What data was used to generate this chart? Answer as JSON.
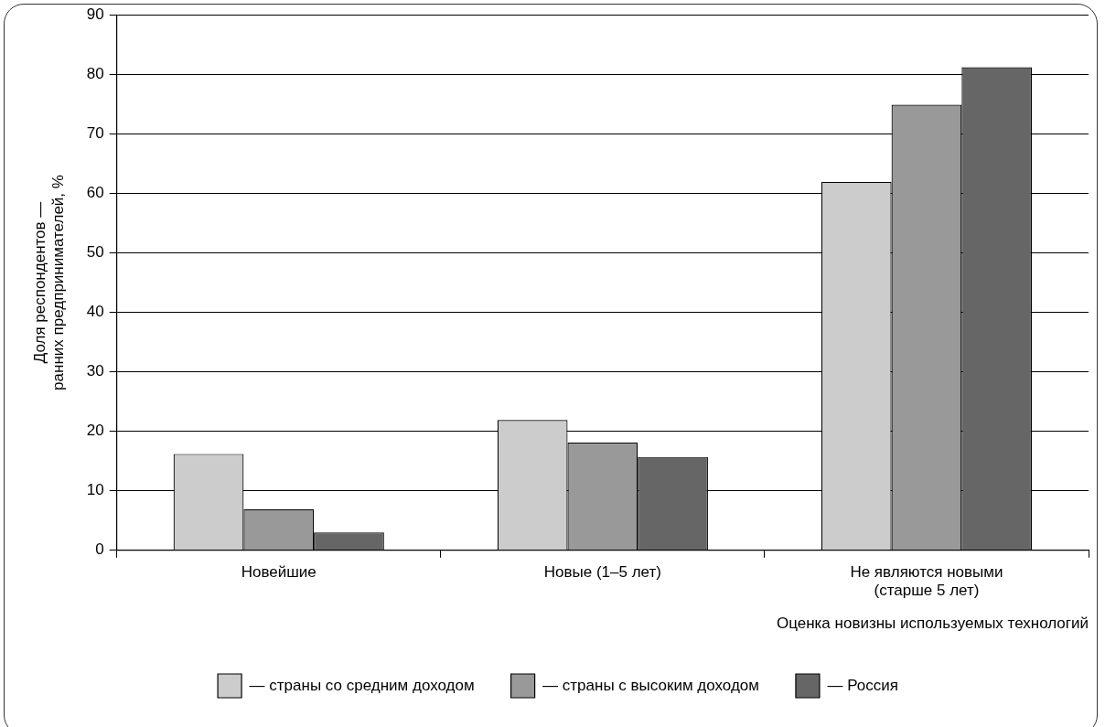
{
  "chart_data": {
    "type": "bar",
    "categories": [
      "Новейшие",
      "Новые (1–5 лет)",
      "Не являются новыми\n(старше 5 лет)"
    ],
    "xlabel": "Оценка новизны используемых технологий",
    "ylabel": "Доля респондентов —\nранних предпринимателей, %",
    "series": [
      {
        "name": "— страны со средним доходом",
        "color": "#cccccc",
        "values": [
          16.2,
          21.9,
          61.9
        ]
      },
      {
        "name": "— страны с высоким доходом",
        "color": "#999999",
        "values": [
          6.9,
          18.1,
          74.9
        ]
      },
      {
        "name": "— Россия",
        "color": "#666666",
        "values": [
          3.0,
          15.7,
          81.2
        ]
      }
    ],
    "ylim": [
      0,
      90
    ],
    "yticks": [
      0,
      10,
      20,
      30,
      40,
      50,
      60,
      70,
      80,
      90
    ],
    "grid": "y",
    "legend": "bottom"
  }
}
